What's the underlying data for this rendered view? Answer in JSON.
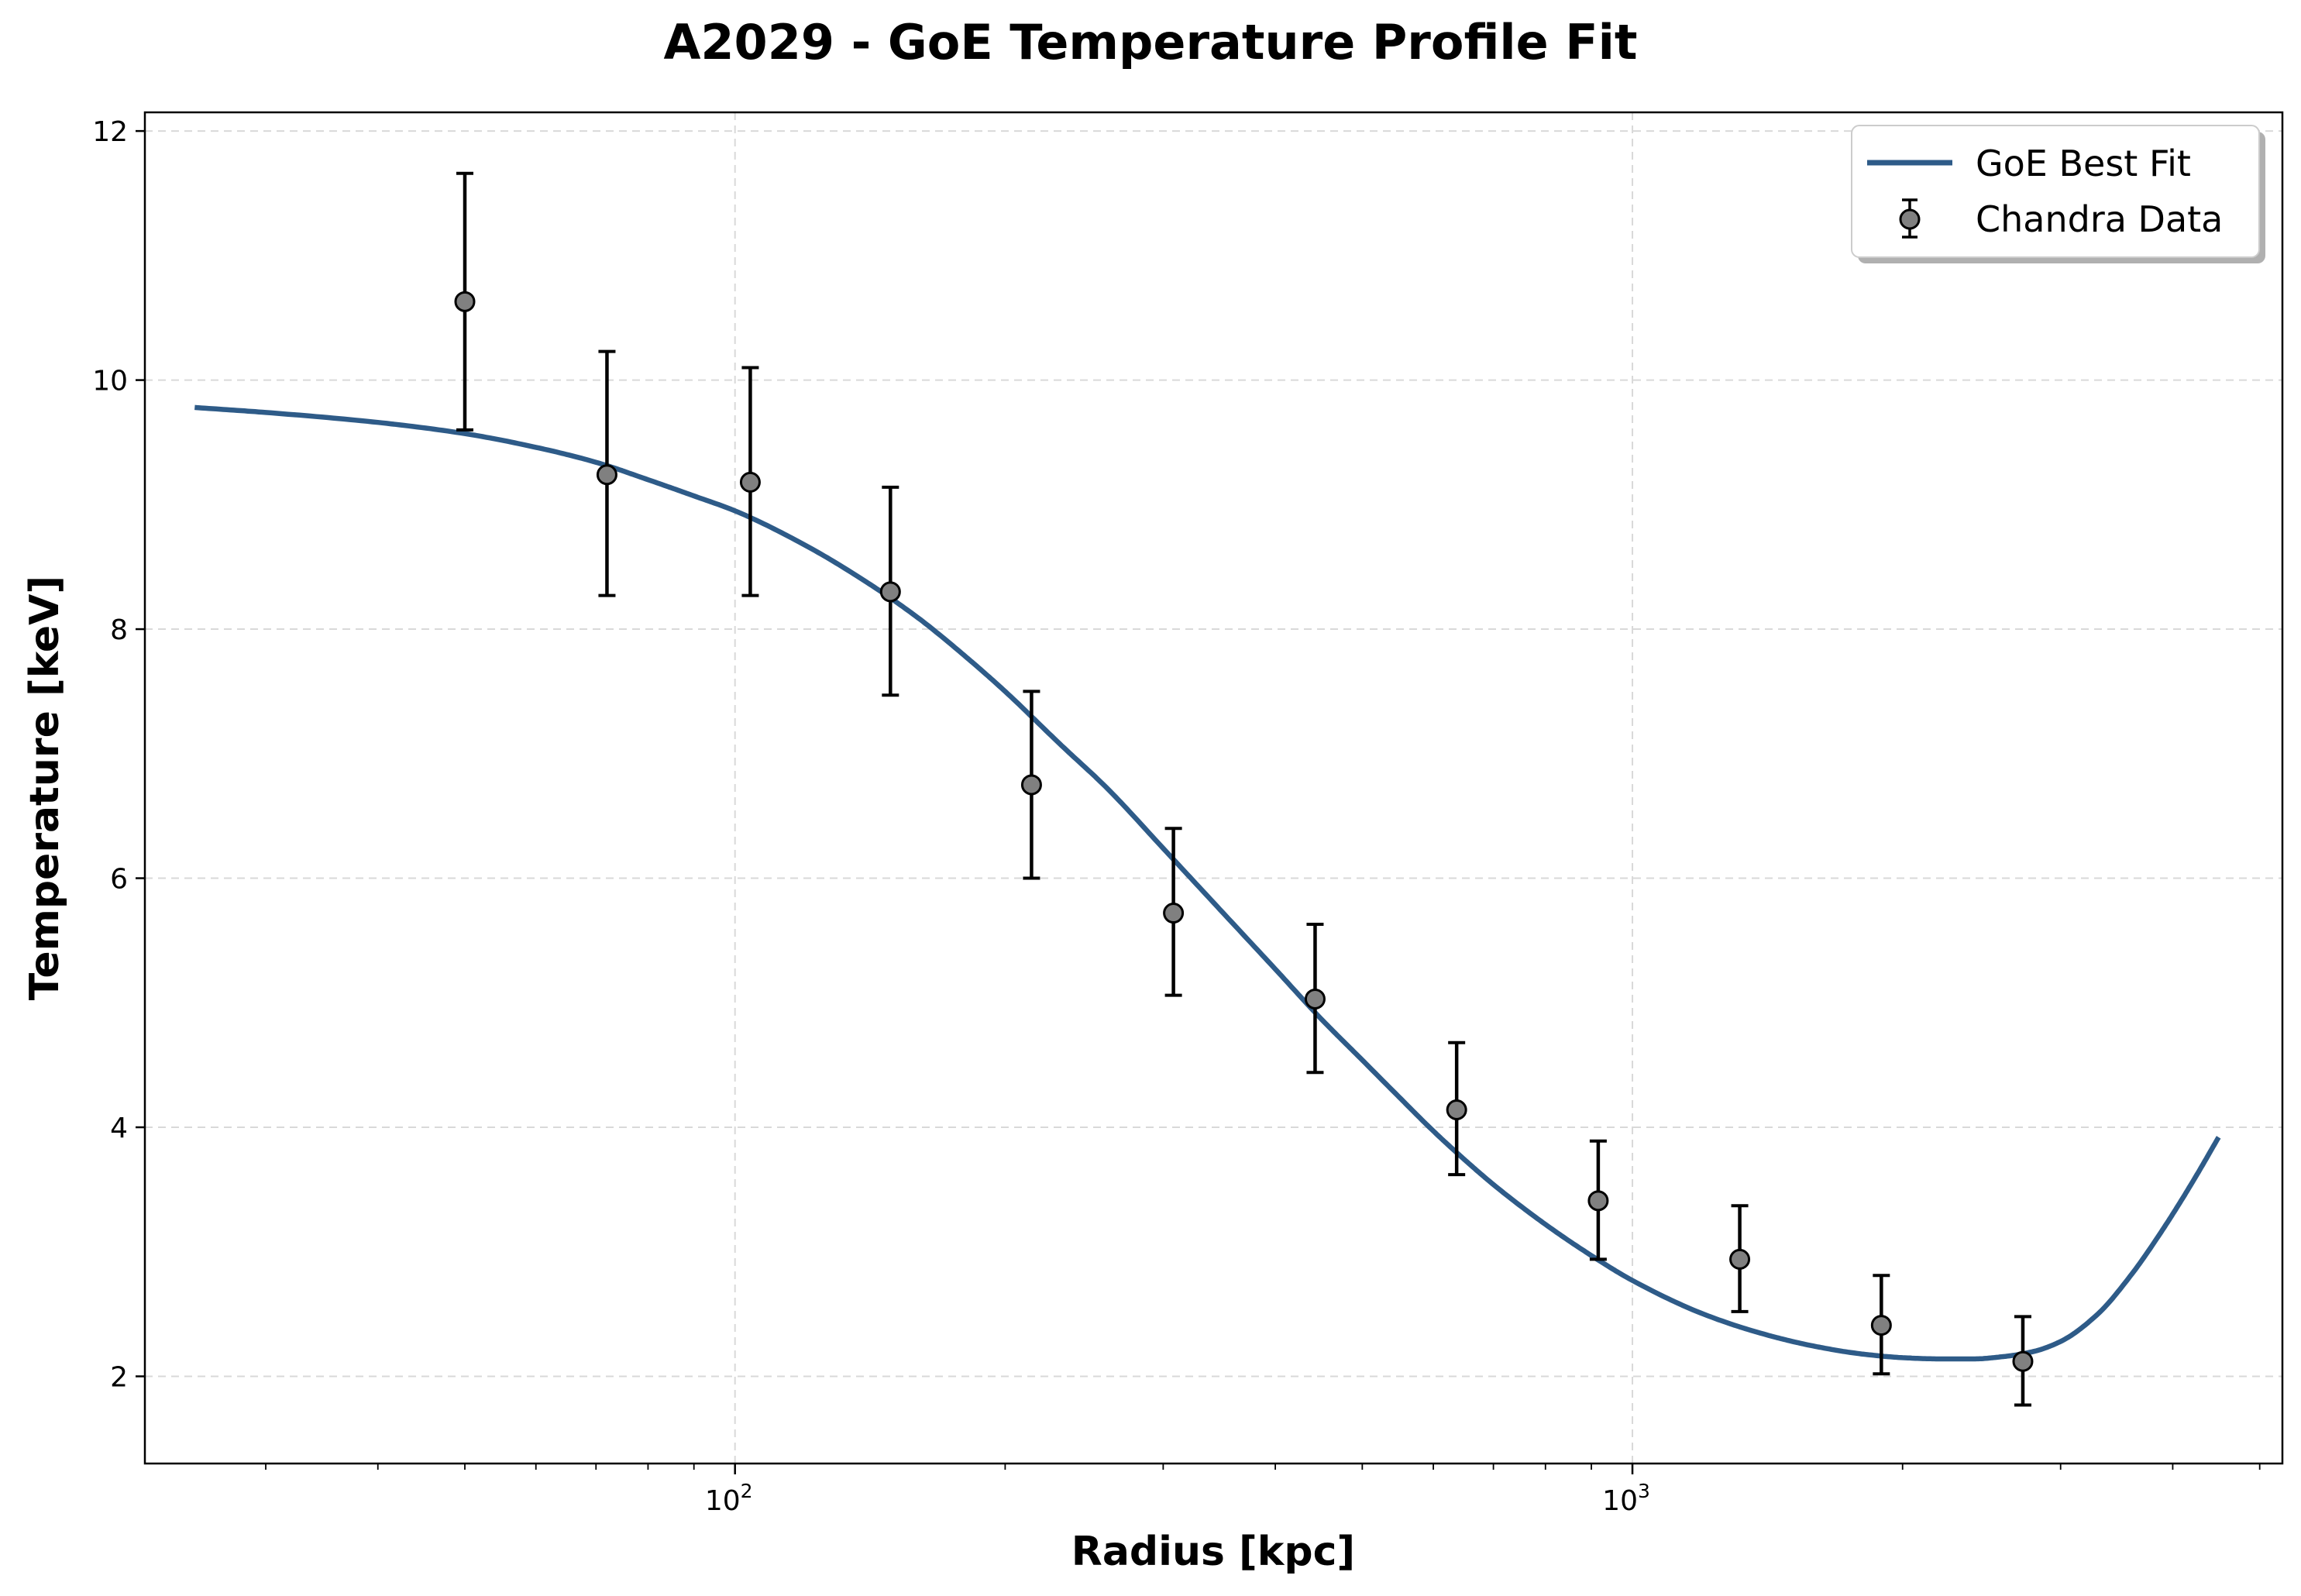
{
  "chart_data": {
    "type": "scatter",
    "title": "A2029 - GoE Temperature Profile Fit",
    "xlabel": "Radius [kpc]",
    "ylabel": "Temperature [keV]",
    "xscale": "log",
    "xlim": [
      22,
      5300
    ],
    "ylim": [
      1.3,
      12.15
    ],
    "x_ticks": [
      {
        "value": 100,
        "base": "10",
        "exp": "2"
      },
      {
        "value": 1000,
        "base": "10",
        "exp": "3"
      }
    ],
    "y_ticks": [
      2,
      4,
      6,
      8,
      10,
      12
    ],
    "grid": true,
    "legend_position": "top-right",
    "series": [
      {
        "name": "GoE Best Fit",
        "kind": "line",
        "color": "#2e5b88",
        "x": [
          25,
          30,
          40,
          50,
          60,
          70,
          80,
          90,
          100,
          120,
          140,
          160,
          180,
          200,
          230,
          260,
          300,
          350,
          400,
          450,
          500,
          550,
          600,
          650,
          700,
          800,
          900,
          1000,
          1200,
          1400,
          1600,
          1800,
          2000,
          2200,
          2400,
          2600,
          2800,
          3000,
          3300,
          3600,
          3900,
          4200,
          4500
        ],
        "y": [
          9.78,
          9.74,
          9.66,
          9.57,
          9.46,
          9.34,
          9.2,
          9.07,
          8.95,
          8.67,
          8.38,
          8.09,
          7.79,
          7.5,
          7.08,
          6.72,
          6.24,
          5.72,
          5.27,
          4.87,
          4.54,
          4.24,
          3.97,
          3.74,
          3.54,
          3.22,
          2.97,
          2.77,
          2.5,
          2.34,
          2.24,
          2.18,
          2.15,
          2.14,
          2.14,
          2.16,
          2.2,
          2.28,
          2.5,
          2.82,
          3.18,
          3.55,
          3.92
        ]
      },
      {
        "name": "Chandra Data",
        "kind": "errorbar",
        "marker_color": "#808080",
        "x": [
          50,
          72,
          104,
          149,
          214,
          308,
          443,
          637,
          916,
          1317,
          1894,
          2723
        ],
        "y": [
          10.63,
          9.24,
          9.18,
          8.3,
          6.75,
          5.72,
          5.03,
          4.14,
          3.41,
          2.94,
          2.41,
          2.12
        ],
        "yerr_low": [
          1.03,
          0.97,
          0.91,
          0.83,
          0.75,
          0.66,
          0.59,
          0.52,
          0.47,
          0.42,
          0.39,
          0.35
        ],
        "yerr_high": [
          1.03,
          0.99,
          0.92,
          0.84,
          0.75,
          0.68,
          0.6,
          0.54,
          0.48,
          0.43,
          0.4,
          0.36
        ]
      }
    ]
  }
}
